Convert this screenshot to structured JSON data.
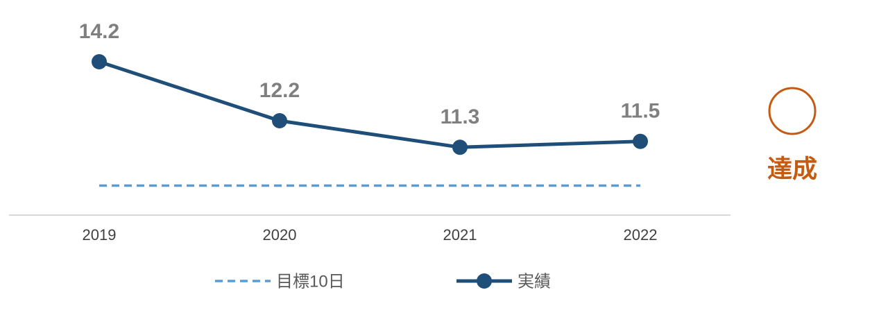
{
  "chart_data": {
    "type": "line",
    "categories": [
      "2019",
      "2020",
      "2021",
      "2022"
    ],
    "series": [
      {
        "name": "目標10日",
        "color": "#5b9bd5",
        "values": [
          10,
          10,
          10,
          10
        ],
        "dashed": true,
        "markers": false,
        "data_labels": false
      },
      {
        "name": "実績",
        "color": "#1f4e79",
        "values": [
          14.2,
          12.2,
          11.3,
          11.5
        ],
        "dashed": false,
        "markers": true,
        "data_labels": true
      }
    ],
    "ylim": [
      9,
      15
    ],
    "grid": false,
    "legend": "bottom",
    "annotation": "達成",
    "annotation_color": "#c55a11"
  }
}
